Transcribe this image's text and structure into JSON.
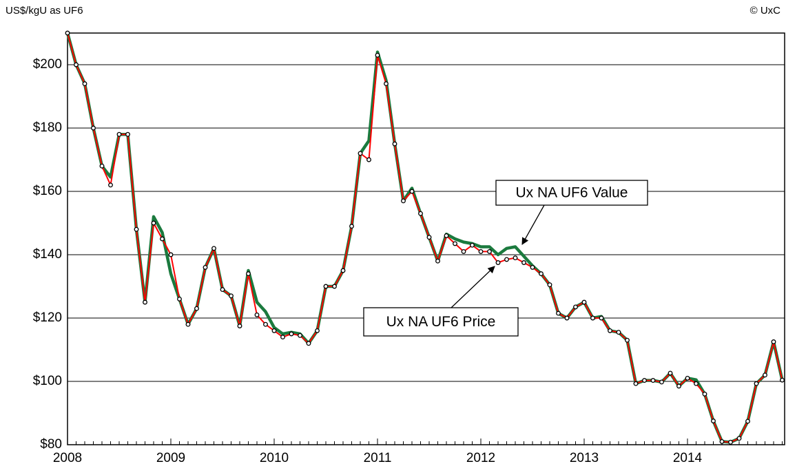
{
  "chart_data": {
    "type": "line",
    "y_label": "US$/kgU as UF6",
    "copyright": "© UxC",
    "categories": [
      "2008",
      null,
      null,
      null,
      null,
      null,
      null,
      null,
      null,
      null,
      null,
      null,
      "2009",
      null,
      null,
      null,
      null,
      null,
      null,
      null,
      null,
      null,
      null,
      null,
      "2010",
      null,
      null,
      null,
      null,
      null,
      null,
      null,
      null,
      null,
      null,
      null,
      "2011",
      null,
      null,
      null,
      null,
      null,
      null,
      null,
      null,
      null,
      null,
      null,
      "2012",
      null,
      null,
      null,
      null,
      null,
      null,
      null,
      null,
      null,
      null,
      null,
      "2013",
      null,
      null,
      null,
      null,
      null,
      null,
      null,
      null,
      null,
      null,
      null,
      "2014",
      null,
      null,
      null,
      null,
      null,
      null,
      null,
      null,
      null,
      null,
      null
    ],
    "series": [
      {
        "name": "Ux NA UF6 Value",
        "color": "#1b7a3e",
        "values": [
          210,
          200,
          194,
          180,
          168,
          164.5,
          178,
          178,
          148,
          125,
          152,
          147,
          134,
          126,
          118,
          123,
          136,
          142,
          129,
          127,
          117.5,
          135,
          125,
          122,
          117,
          115,
          115.5,
          115,
          112,
          116,
          130,
          130,
          135,
          149,
          172,
          176,
          204,
          195,
          175,
          157,
          161,
          153,
          145.5,
          138,
          146.5,
          145,
          144,
          143.5,
          142.5,
          142.5,
          140,
          142,
          142.5,
          139.5,
          136.5,
          134,
          130.5,
          121.5,
          120,
          123.5,
          125,
          120,
          120.5,
          116,
          115.5,
          113,
          99.3,
          100.3,
          100.3,
          99.8,
          102.6,
          98.5,
          101,
          100.5,
          96,
          87.5,
          81,
          80.8,
          82,
          87.4,
          99.3,
          102,
          112.5,
          100.4
        ]
      },
      {
        "name": "Ux NA UF6 Price",
        "color": "#ff0000",
        "values": [
          210,
          200,
          194,
          180,
          168,
          162,
          178,
          178,
          148,
          125,
          150,
          145,
          140,
          126,
          118,
          123,
          136,
          142,
          129,
          127,
          117.5,
          134,
          121,
          118,
          116,
          114,
          115,
          114.5,
          112,
          116,
          130,
          130,
          135,
          149,
          172,
          170,
          203,
          194,
          175,
          157,
          160,
          153,
          145.5,
          138,
          146,
          143.5,
          141,
          143,
          141,
          141,
          137.5,
          138.5,
          139,
          137.5,
          136,
          134,
          130.5,
          121.5,
          120,
          123.5,
          125,
          120,
          120,
          116,
          115.5,
          113,
          99.3,
          100.3,
          100.3,
          99.8,
          102.6,
          98.5,
          101,
          99.3,
          96,
          87.5,
          81,
          80.8,
          82,
          87.4,
          99.3,
          102,
          112.5,
          100.4
        ]
      }
    ],
    "annotations": [
      "Ux NA UF6 Value",
      "Ux NA UF6 Price"
    ],
    "ylim": [
      80,
      210
    ],
    "yticks": [
      {
        "value": 80,
        "label": "$80"
      },
      {
        "value": 100,
        "label": "$100"
      },
      {
        "value": 120,
        "label": "$120"
      },
      {
        "value": 140,
        "label": "$140"
      },
      {
        "value": 160,
        "label": "$160"
      },
      {
        "value": 180,
        "label": "$180"
      },
      {
        "value": 200,
        "label": "$200"
      }
    ],
    "grid": true
  }
}
